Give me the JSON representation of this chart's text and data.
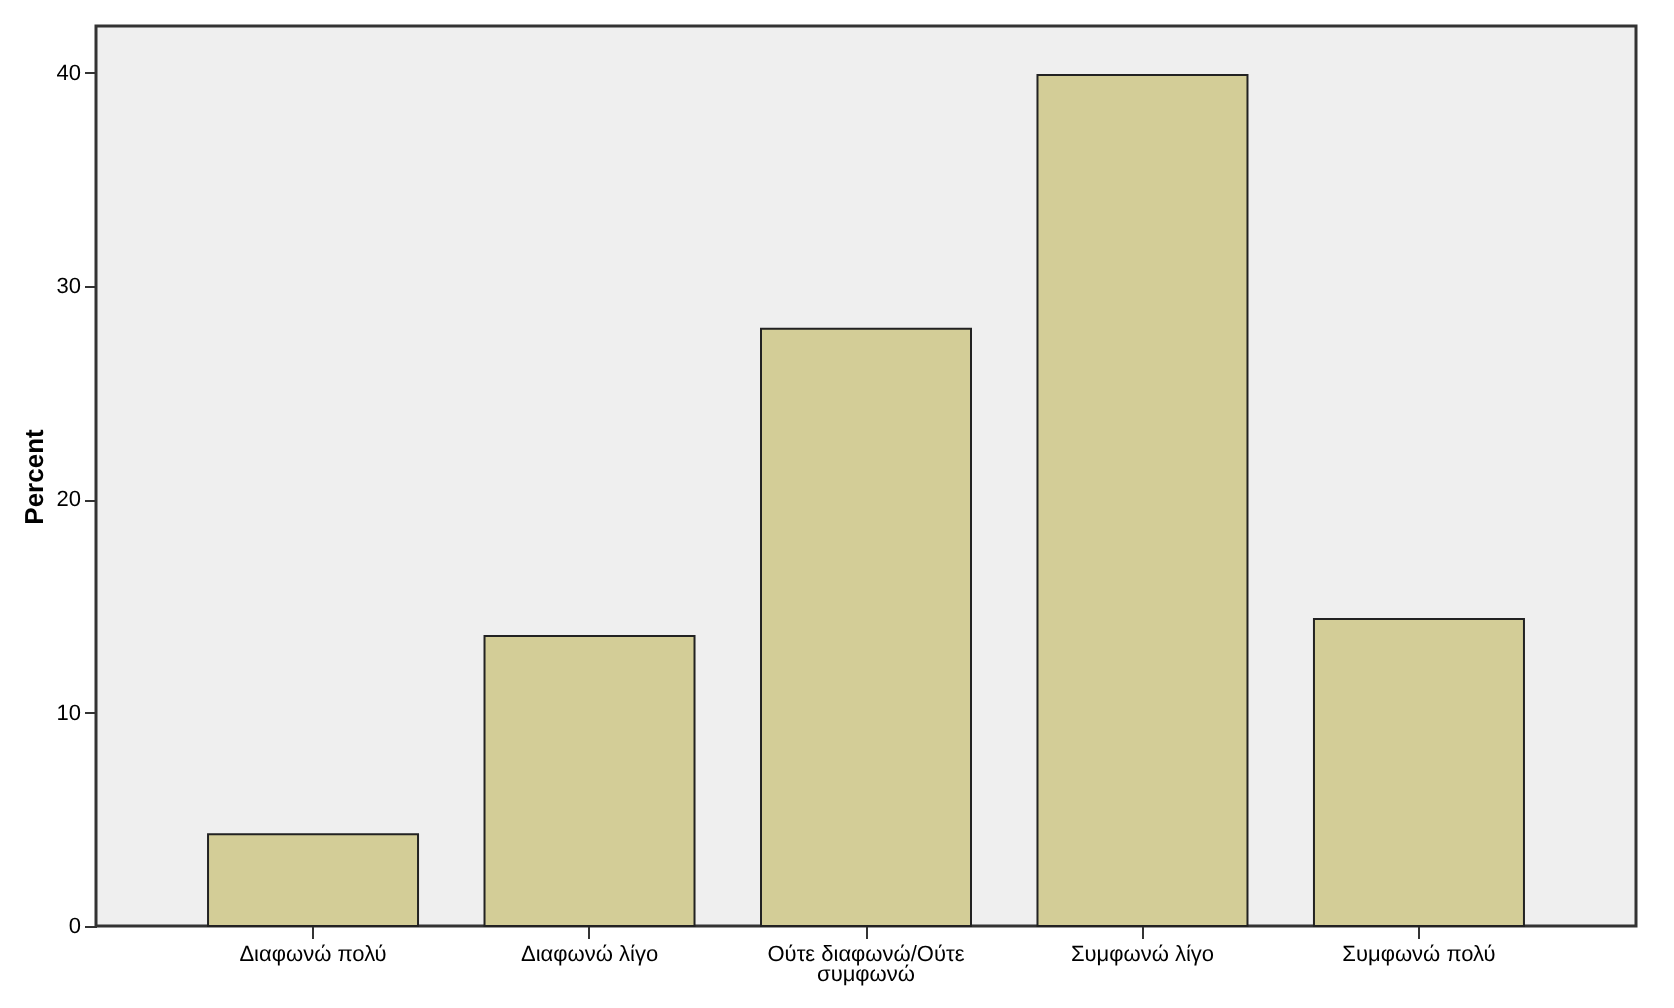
{
  "chart_data": {
    "type": "bar",
    "ylabel": "Percent",
    "categories": [
      "Διαφωνώ πολύ",
      "Διαφωνώ λίγο",
      "Ούτε διαφωνώ/Ούτε συμφωνώ",
      "Συμφωνώ λίγο",
      "Συμφωνώ πολύ"
    ],
    "values": [
      4.3,
      13.6,
      28.0,
      39.9,
      14.4
    ],
    "color": "#d3cd97",
    "ylim": [
      0,
      42.2
    ],
    "yticks": [
      0,
      10,
      20,
      30,
      40
    ],
    "grid": false
  }
}
